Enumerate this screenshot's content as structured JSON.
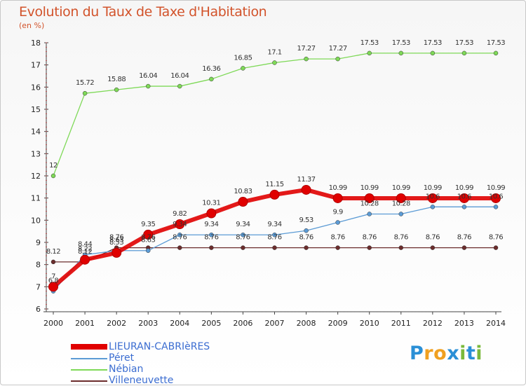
{
  "title": "Evolution du Taux de Taxe d'Habitation",
  "unit": "(en %)",
  "brand": {
    "letters": [
      "P",
      "r",
      "o",
      "x",
      "i",
      "t",
      "i"
    ],
    "colors": [
      "#2a8fd6",
      "#f0a020",
      "#f0a020",
      "#2a8fd6",
      "#7ab93b",
      "#2a8fd6",
      "#7ab93b"
    ]
  },
  "chart_data": {
    "type": "line",
    "x": [
      "2000",
      "2001",
      "2002",
      "2003",
      "2004",
      "2005",
      "2006",
      "2007",
      "2008",
      "2009",
      "2010",
      "2011",
      "2012",
      "2013",
      "2014"
    ],
    "ylim": [
      6,
      18
    ],
    "yticks": [
      "6",
      "7",
      "8",
      "9",
      "10",
      "11",
      "12",
      "13",
      "14",
      "15",
      "16",
      "17",
      "18"
    ],
    "grid": false,
    "legend_position": "bottom-left",
    "series": [
      {
        "name": "LIEURAN-CABRIèRES",
        "color": "#e00000",
        "values": [
          7,
          8.22,
          8.53,
          9.35,
          9.82,
          10.31,
          10.83,
          11.15,
          11.37,
          10.99,
          10.99,
          10.99,
          10.99,
          10.99,
          10.99
        ],
        "labels": [
          "7",
          "8.22",
          "8.53",
          "9.35",
          "9.82",
          "10.31",
          "10.83",
          "11.15",
          "11.37",
          "10.99",
          "10.99",
          "10.99",
          "10.99",
          "10.99",
          "10.99"
        ]
      },
      {
        "name": "Péret",
        "color": "#5b9bd5",
        "values": [
          6.8,
          8.44,
          8.63,
          8.63,
          9.34,
          9.34,
          9.34,
          9.34,
          9.53,
          9.9,
          10.28,
          10.28,
          10.6,
          10.6,
          10.6
        ],
        "labels": [
          "6.8",
          "8.44",
          "8.63",
          "8.63",
          "9.34",
          "9.34",
          "9.34",
          "9.34",
          "9.53",
          "9.9",
          "10.28",
          "10.28",
          "10.6",
          "10.6",
          "10.6"
        ]
      },
      {
        "name": "Nébian",
        "color": "#7ed957",
        "values": [
          12,
          15.72,
          15.88,
          16.04,
          16.04,
          16.36,
          16.85,
          17.1,
          17.27,
          17.27,
          17.53,
          17.53,
          17.53,
          17.53,
          17.53
        ],
        "labels": [
          "12",
          "15.72",
          "15.88",
          "16.04",
          "16.04",
          "16.36",
          "16.85",
          "17.1",
          "17.27",
          "17.27",
          "17.53",
          "17.53",
          "17.53",
          "17.53",
          "17.53"
        ]
      },
      {
        "name": "Villeneuvette",
        "color": "#6b2c2c",
        "values": [
          8.12,
          8.12,
          8.76,
          8.76,
          8.76,
          8.76,
          8.76,
          8.76,
          8.76,
          8.76,
          8.76,
          8.76,
          8.76,
          8.76,
          8.76
        ],
        "labels": [
          "8.12",
          "8.12",
          "8.76",
          "8.76",
          "8.76",
          "8.76",
          "8.76",
          "8.76",
          "8.76",
          "8.76",
          "8.76",
          "8.76",
          "8.76",
          "8.76",
          "8.76"
        ]
      }
    ]
  }
}
